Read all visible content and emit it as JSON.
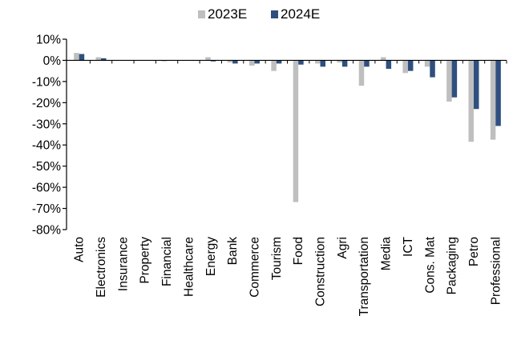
{
  "chart_data": {
    "type": "bar",
    "title": "",
    "xlabel": "",
    "ylabel": "",
    "ylim": [
      -80,
      10
    ],
    "y_ticks": [
      "10%",
      "0%",
      "-10%",
      "-20%",
      "-30%",
      "-40%",
      "-50%",
      "-60%",
      "-70%",
      "-80%"
    ],
    "grid": false,
    "legend_position": "top",
    "categories": [
      "Auto",
      "Electronics",
      "Insurance",
      "Property",
      "Financial",
      "Healthcare",
      "Energy",
      "Bank",
      "Commerce",
      "Tourism",
      "Food",
      "Construction",
      "Agri",
      "Transportation",
      "Media",
      "ICT",
      "Cons. Mat",
      "Packaging",
      "Petro",
      "Professional"
    ],
    "series": [
      {
        "name": "2023E",
        "color": "#bfbfbf",
        "values": [
          3.5,
          1.5,
          0,
          0,
          -0.5,
          0,
          1.5,
          -1,
          -2.5,
          -5,
          -67,
          -1.5,
          -1,
          -12,
          1.5,
          -6,
          -3,
          -19.5,
          -38.5,
          -37.5
        ]
      },
      {
        "name": "2024E",
        "color": "#2f4f7f",
        "values": [
          3,
          1,
          0,
          0,
          0,
          0,
          -0.5,
          -1.5,
          -1.5,
          -1.5,
          -2,
          -3,
          -3,
          -3,
          -4,
          -5,
          -8,
          -17.5,
          -23,
          -31
        ]
      }
    ]
  }
}
